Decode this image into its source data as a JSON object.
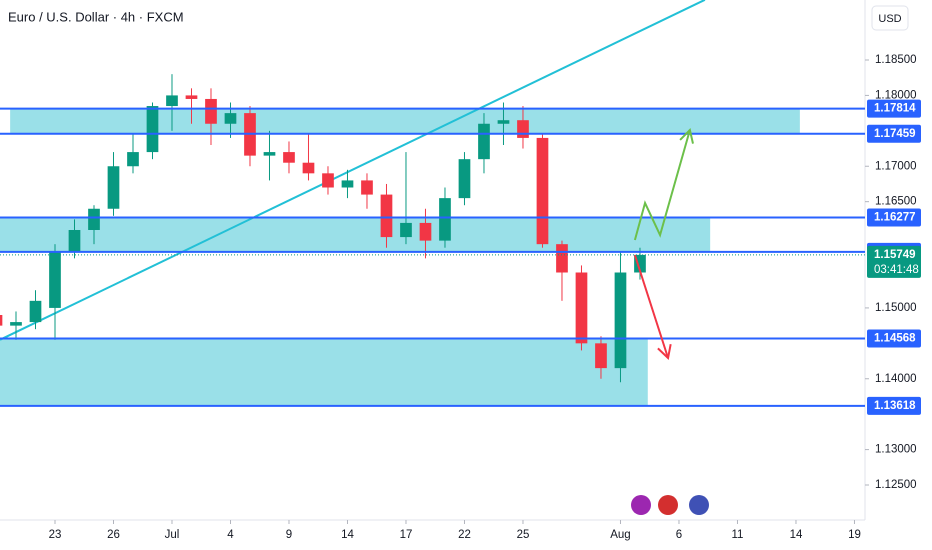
{
  "chart_data": {
    "type": "candlestick",
    "title": "Euro / U.S. Dollar · 4h · FXCM",
    "currency": "USD",
    "x": [
      -3,
      -2,
      -1,
      0,
      1,
      2,
      3,
      4,
      5,
      6,
      7,
      8,
      9,
      10,
      11,
      12,
      13,
      14,
      15,
      16,
      17,
      18,
      19,
      20,
      21,
      22,
      23,
      24,
      25,
      26,
      27,
      28,
      29,
      30
    ],
    "open": [
      1.149,
      1.1475,
      1.148,
      1.15,
      1.158,
      1.161,
      1.164,
      1.17,
      1.172,
      1.1785,
      1.18,
      1.1795,
      1.176,
      1.1775,
      1.1715,
      1.172,
      1.1705,
      1.169,
      1.167,
      1.168,
      1.166,
      1.16,
      1.162,
      1.1595,
      1.1655,
      1.171,
      1.176,
      1.1765,
      1.174,
      1.159,
      1.155,
      1.145,
      1.1415,
      1.155
    ],
    "high": [
      1.1515,
      1.1495,
      1.1525,
      1.159,
      1.1625,
      1.1645,
      1.172,
      1.1745,
      1.179,
      1.183,
      1.181,
      1.181,
      1.179,
      1.1785,
      1.175,
      1.1735,
      1.1745,
      1.17,
      1.1695,
      1.169,
      1.1675,
      1.172,
      1.164,
      1.167,
      1.172,
      1.1775,
      1.179,
      1.1785,
      1.1745,
      1.1595,
      1.156,
      1.146,
      1.158,
      1.1585
    ],
    "low": [
      1.1465,
      1.1455,
      1.147,
      1.1455,
      1.157,
      1.159,
      1.163,
      1.169,
      1.171,
      1.175,
      1.176,
      1.173,
      1.174,
      1.17,
      1.168,
      1.169,
      1.168,
      1.166,
      1.1655,
      1.164,
      1.1585,
      1.159,
      1.157,
      1.1585,
      1.1645,
      1.169,
      1.173,
      1.1725,
      1.1585,
      1.151,
      1.144,
      1.14,
      1.1395,
      1.154
    ],
    "close": [
      1.1475,
      1.148,
      1.151,
      1.158,
      1.161,
      1.164,
      1.17,
      1.172,
      1.1785,
      1.18,
      1.1795,
      1.176,
      1.1775,
      1.1715,
      1.172,
      1.1705,
      1.169,
      1.167,
      1.168,
      1.166,
      1.16,
      1.162,
      1.1595,
      1.1655,
      1.171,
      1.176,
      1.1765,
      1.174,
      1.159,
      1.155,
      1.145,
      1.1415,
      1.155,
      1.15749
    ],
    "up_color": "#089981",
    "down_color": "#f23645",
    "xlim": [
      -2.82,
      41.54
    ],
    "ylim": [
      1.12006,
      1.19347
    ],
    "xticks": [
      {
        "value": 0,
        "label": "23"
      },
      {
        "value": 3,
        "label": "26"
      },
      {
        "value": 6,
        "label": "Jul"
      },
      {
        "value": 9,
        "label": "4"
      },
      {
        "value": 12,
        "label": "9"
      },
      {
        "value": 15,
        "label": "14"
      },
      {
        "value": 18,
        "label": "17"
      },
      {
        "value": 21,
        "label": "22"
      },
      {
        "value": 24,
        "label": "25"
      },
      {
        "value": 29,
        "label": "Aug"
      },
      {
        "value": 32,
        "label": "6"
      },
      {
        "value": 35,
        "label": "11"
      },
      {
        "value": 38,
        "label": "14"
      },
      {
        "value": 41,
        "label": "19"
      }
    ],
    "yticks": [
      {
        "value": 1.185,
        "label": "1.18500"
      },
      {
        "value": 1.18,
        "label": "1.18000"
      },
      {
        "value": 1.17,
        "label": "1.17000"
      },
      {
        "value": 1.165,
        "label": "1.16500"
      },
      {
        "value": 1.15,
        "label": "1.15000"
      },
      {
        "value": 1.14,
        "label": "1.14000"
      },
      {
        "value": 1.13,
        "label": "1.13000"
      },
      {
        "value": 1.125,
        "label": "1.12500"
      }
    ],
    "zones": [
      {
        "from": 1.17459,
        "to": 1.17814,
        "x": [
          -2.3,
          38.2
        ]
      },
      {
        "from": 1.15792,
        "to": 1.16277,
        "x": [
          -2.82,
          33.6
        ]
      },
      {
        "from": 1.13618,
        "to": 1.14568,
        "x": [
          -2.82,
          30.4
        ]
      }
    ],
    "zone_color": "#8fdde6",
    "levels": [
      1.17814,
      1.17459,
      1.16277,
      1.15792,
      1.14568,
      1.13618
    ],
    "level_color": "#2962ff",
    "current_price": 1.15749,
    "countdown": "03:41:48",
    "trendline": {
      "x": [
        -2.82,
        33.33
      ],
      "y": [
        1.1455,
        1.1935
      ],
      "color": "#22c0d6"
    },
    "arrows": [
      {
        "x": [
          29.74,
          30.26,
          31.03,
          32.56
        ],
        "y": [
          1.15959,
          1.16481,
          1.16029,
          1.17512
        ],
        "color": "#6cc04a"
      },
      {
        "x": [
          29.74,
          31.44
        ],
        "y": [
          1.15747,
          1.14293
        ],
        "color": "#f23645"
      }
    ]
  }
}
